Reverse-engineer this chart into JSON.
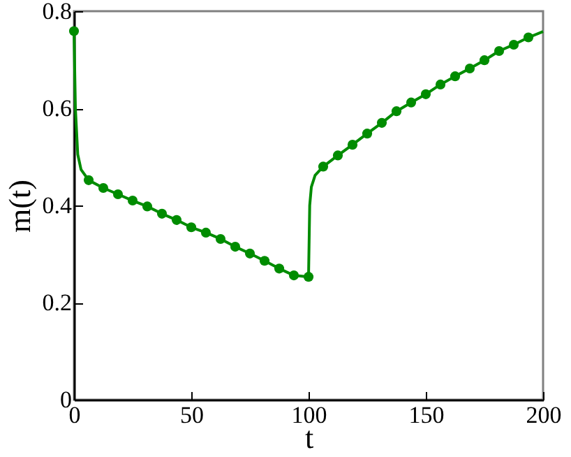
{
  "chart_data": {
    "type": "line",
    "xlabel": "t",
    "ylabel": "m(t)",
    "xlim": [
      0,
      200
    ],
    "ylim": [
      0,
      0.8
    ],
    "xticks": [
      0,
      50,
      100,
      150,
      200
    ],
    "yticks": [
      0,
      0.2,
      0.4,
      0.6,
      0.8
    ],
    "grid": false,
    "series": [
      {
        "color": "#008c00",
        "x": [
          0,
          0.6,
          1.6,
          3,
          6.25,
          12.5,
          18.75,
          25,
          31.25,
          37.5,
          43.75,
          50,
          56.25,
          62.5,
          68.75,
          75,
          81.25,
          87.5,
          93.75,
          100,
          100.5,
          101.2,
          102.8,
          106.25,
          112.5,
          118.75,
          125,
          131.25,
          137.5,
          143.75,
          150,
          156.25,
          162.5,
          168.75,
          175,
          181.25,
          187.5,
          193.75,
          200
        ],
        "values": [
          0.759,
          0.6,
          0.505,
          0.474,
          0.452,
          0.436,
          0.423,
          0.41,
          0.398,
          0.383,
          0.37,
          0.355,
          0.344,
          0.331,
          0.315,
          0.301,
          0.286,
          0.27,
          0.256,
          0.253,
          0.4,
          0.438,
          0.462,
          0.48,
          0.503,
          0.525,
          0.548,
          0.57,
          0.594,
          0.612,
          0.629,
          0.649,
          0.666,
          0.682,
          0.699,
          0.718,
          0.731,
          0.746,
          0.758
        ]
      },
      {
        "type": "scatter",
        "color": "#008c00",
        "x": [
          0,
          6.25,
          12.5,
          18.75,
          25,
          31.25,
          37.5,
          43.75,
          50,
          56.25,
          62.5,
          68.75,
          75,
          81.25,
          87.5,
          93.75,
          100,
          106.25,
          112.5,
          118.75,
          125,
          131.25,
          137.5,
          143.75,
          150,
          156.25,
          162.5,
          168.75,
          175,
          181.25,
          187.5,
          193.75
        ],
        "values": [
          0.759,
          0.452,
          0.436,
          0.423,
          0.41,
          0.398,
          0.383,
          0.37,
          0.355,
          0.344,
          0.331,
          0.315,
          0.301,
          0.286,
          0.27,
          0.256,
          0.253,
          0.48,
          0.503,
          0.525,
          0.548,
          0.57,
          0.594,
          0.612,
          0.629,
          0.649,
          0.666,
          0.682,
          0.699,
          0.718,
          0.731,
          0.746
        ]
      }
    ]
  }
}
